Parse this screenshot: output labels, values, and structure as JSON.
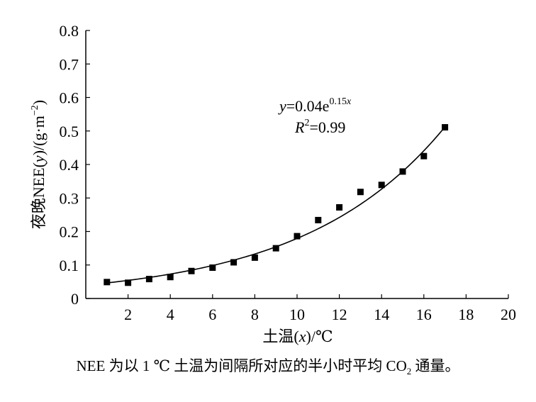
{
  "chart_data": {
    "type": "scatter",
    "xlabel": {
      "pre": "土温(",
      "var": "x",
      "post": ")/℃"
    },
    "ylabel": {
      "pre": "夜晚NEE(",
      "var": "y",
      "post": ")/(g·m",
      "sup": "−2",
      "close": ")"
    },
    "xlim": [
      0,
      20
    ],
    "ylim": [
      0,
      0.8
    ],
    "xticks": [
      2,
      4,
      6,
      8,
      10,
      12,
      14,
      16,
      18,
      20
    ],
    "yticks": [
      0,
      0.1,
      0.2,
      0.3,
      0.4,
      0.5,
      0.6,
      0.7,
      0.8
    ],
    "ytick_labels": [
      "0",
      "0.1",
      "0.2",
      "0.3",
      "0.4",
      "0.5",
      "0.6",
      "0.7",
      "0.8"
    ],
    "series": [
      {
        "marker": "square",
        "x": [
          1,
          2,
          3,
          4,
          5,
          6,
          7,
          8,
          9,
          10,
          11,
          12,
          13,
          14,
          15,
          16,
          17
        ],
        "y": [
          0.049,
          0.047,
          0.058,
          0.064,
          0.082,
          0.092,
          0.108,
          0.122,
          0.15,
          0.186,
          0.234,
          0.272,
          0.318,
          0.339,
          0.379,
          0.425,
          0.511
        ]
      }
    ],
    "fit": {
      "a": 0.04,
      "b": 0.15,
      "x_range": [
        1,
        17
      ]
    },
    "equation": {
      "y": "y",
      "eq": "=0.04e",
      "exp": "0.15",
      "expvar": "x"
    },
    "r2": {
      "r": "R",
      "sup": "2",
      "eq": "=0.99"
    }
  },
  "caption": {
    "text": "NEE 为以 1 ℃ 土温为间隔所对应的半小时平均 CO",
    "sub": "2",
    "tail": " 通量。"
  }
}
